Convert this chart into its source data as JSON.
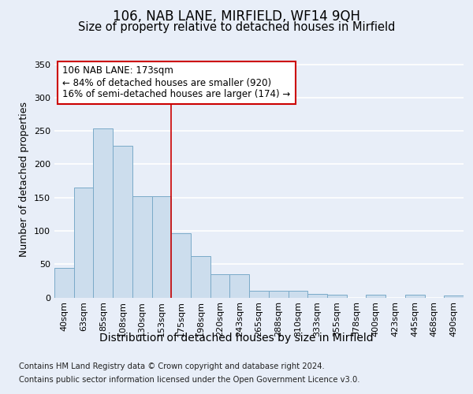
{
  "title": "106, NAB LANE, MIRFIELD, WF14 9QH",
  "subtitle": "Size of property relative to detached houses in Mirfield",
  "xlabel": "Distribution of detached houses by size in Mirfield",
  "ylabel": "Number of detached properties",
  "categories": [
    "40sqm",
    "63sqm",
    "85sqm",
    "108sqm",
    "130sqm",
    "153sqm",
    "175sqm",
    "198sqm",
    "220sqm",
    "243sqm",
    "265sqm",
    "288sqm",
    "310sqm",
    "333sqm",
    "355sqm",
    "378sqm",
    "400sqm",
    "423sqm",
    "445sqm",
    "468sqm",
    "490sqm"
  ],
  "values": [
    44,
    165,
    254,
    228,
    152,
    152,
    97,
    62,
    35,
    35,
    10,
    10,
    10,
    5,
    4,
    0,
    4,
    0,
    4,
    0,
    3
  ],
  "bar_color": "#ccdded",
  "bar_edge_color": "#7aaac8",
  "vline_color": "#cc0000",
  "vline_position": 6,
  "annotation_text": "106 NAB LANE: 173sqm\n← 84% of detached houses are smaller (920)\n16% of semi-detached houses are larger (174) →",
  "footer_line1": "Contains HM Land Registry data © Crown copyright and database right 2024.",
  "footer_line2": "Contains public sector information licensed under the Open Government Licence v3.0.",
  "ylim": [
    0,
    355
  ],
  "yticks": [
    0,
    50,
    100,
    150,
    200,
    250,
    300,
    350
  ],
  "bg_color": "#e8eef8",
  "grid_color": "#ffffff",
  "title_fontsize": 12,
  "subtitle_fontsize": 10.5,
  "ylabel_fontsize": 9,
  "xlabel_fontsize": 10,
  "tick_fontsize": 8,
  "annot_fontsize": 8.5,
  "footer_fontsize": 7.2
}
